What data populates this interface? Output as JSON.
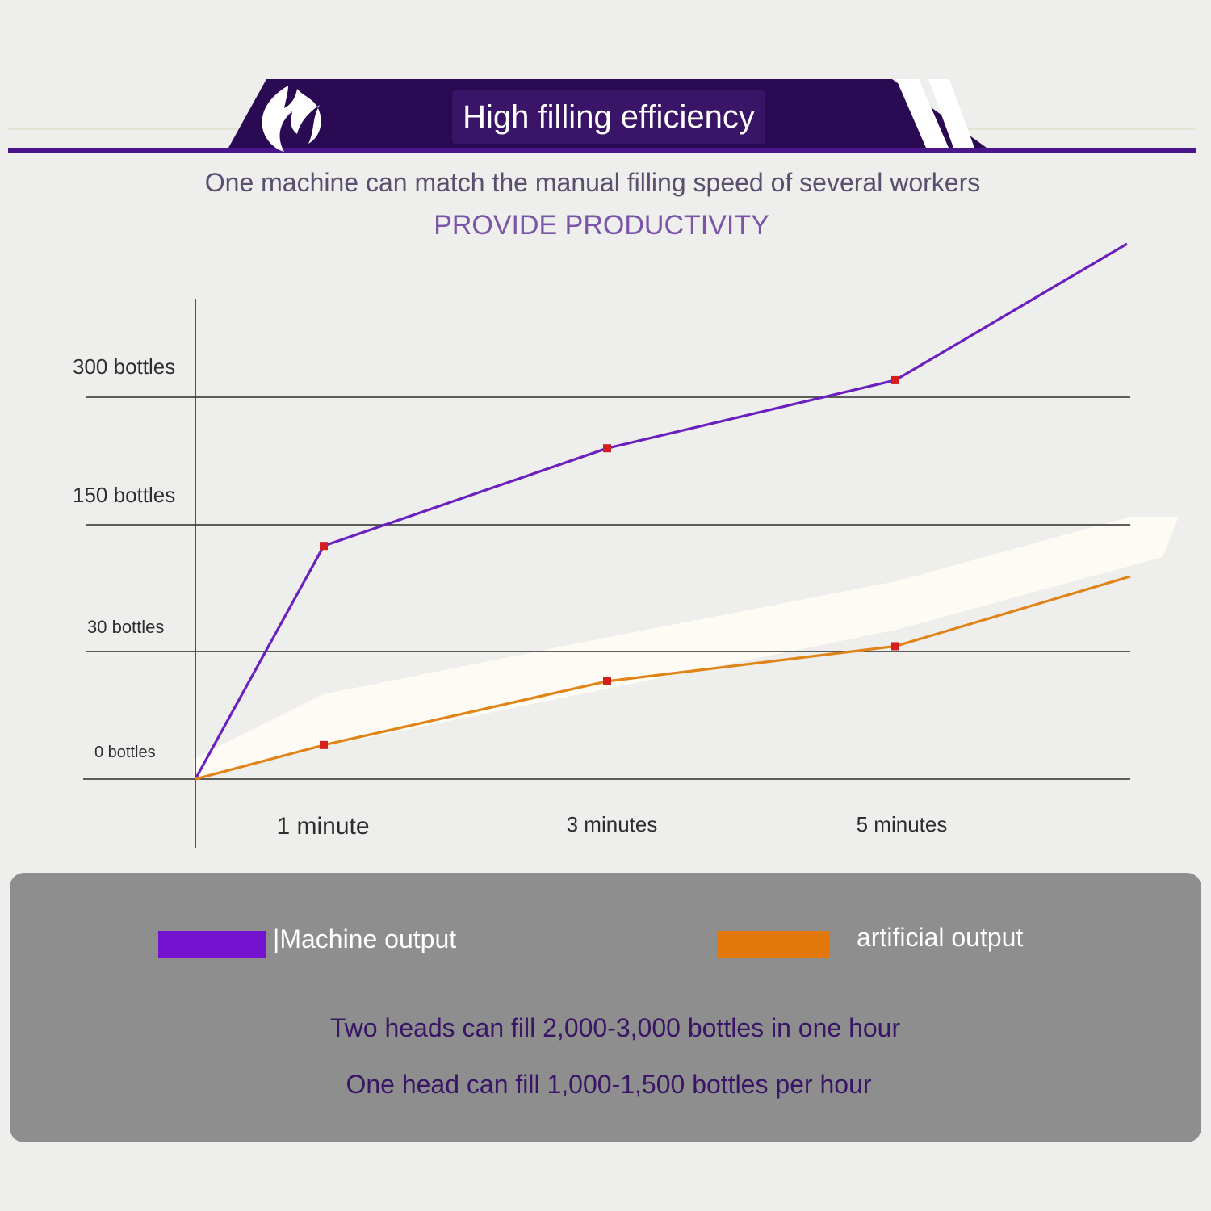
{
  "header": {
    "title": "High filling efficiency",
    "subtitle": "One machine can match the manual filling speed of several workers",
    "tagline": "PROVIDE PRODUCTIVITY",
    "logo_icon": "flame-logo-icon",
    "band_color": "#2a0a52",
    "accent_color": "#5b1e9a"
  },
  "chart_data": {
    "type": "line",
    "title": "",
    "xlabel": "",
    "ylabel": "",
    "x_ticks": [
      "1 minute",
      "3 minutes",
      "5 minutes"
    ],
    "y_ticks": [
      "0 bottles",
      "30 bottles",
      "150 bottles",
      "300 bottles"
    ],
    "grid": true,
    "legend_position": "bottom",
    "series": [
      {
        "name": "|Machine output",
        "color": "#6a1fbe",
        "x": [
          0,
          1,
          3,
          5
        ],
        "y": [
          0,
          130,
          240,
          320
        ]
      },
      {
        "name": "artificial output",
        "color": "#e08417",
        "x": [
          0,
          1,
          3,
          5
        ],
        "y": [
          0,
          8,
          23,
          35
        ]
      }
    ],
    "marker_color": "#d41f1f"
  },
  "legend": {
    "machine_label": "|Machine output",
    "manual_label": "artificial output",
    "machine_color": "#7512d0",
    "manual_color": "#e3780a"
  },
  "notes": {
    "two_heads": "Two heads can fill 2,000-3,000 bottles in one hour",
    "one_head": "One head can fill 1,000-1,500 bottles per hour"
  }
}
